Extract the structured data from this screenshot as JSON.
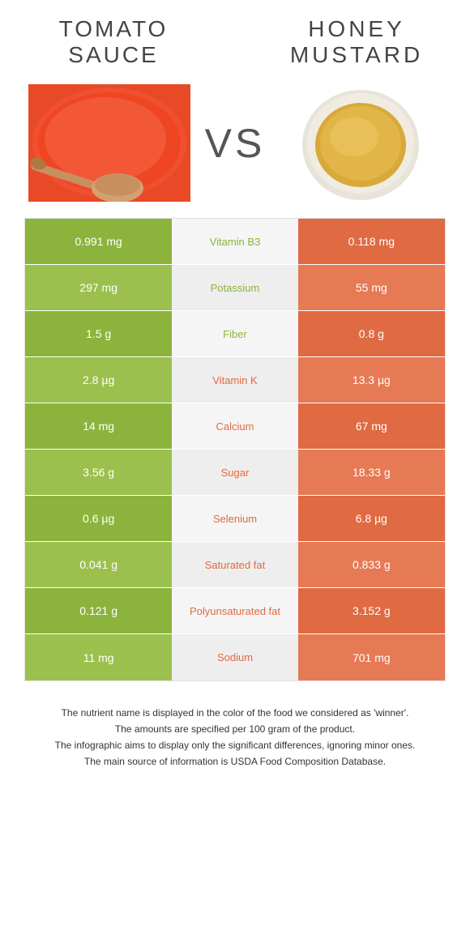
{
  "colors": {
    "green": "#8cb43c",
    "orange": "#e06a42",
    "row_alt_green": "#9bc04d",
    "row_alt_orange": "#e57a55",
    "mid_bg": "#f5f5f5",
    "mid_alt_bg": "#eeeeee"
  },
  "left": {
    "title_line1": "TOMATO",
    "title_line2": "SAUCE"
  },
  "right": {
    "title_line1": "HONEY",
    "title_line2": "MUSTARD"
  },
  "vs": "VS",
  "rows": [
    {
      "left": "0.991 mg",
      "label": "Vitamin B3",
      "right": "0.118 mg",
      "winner": "left"
    },
    {
      "left": "297 mg",
      "label": "Potassium",
      "right": "55 mg",
      "winner": "left"
    },
    {
      "left": "1.5 g",
      "label": "Fiber",
      "right": "0.8 g",
      "winner": "left"
    },
    {
      "left": "2.8 µg",
      "label": "Vitamin K",
      "right": "13.3 µg",
      "winner": "right"
    },
    {
      "left": "14 mg",
      "label": "Calcium",
      "right": "67 mg",
      "winner": "right"
    },
    {
      "left": "3.56 g",
      "label": "Sugar",
      "right": "18.33 g",
      "winner": "right"
    },
    {
      "left": "0.6 µg",
      "label": "Selenium",
      "right": "6.8 µg",
      "winner": "right"
    },
    {
      "left": "0.041 g",
      "label": "Saturated fat",
      "right": "0.833 g",
      "winner": "right"
    },
    {
      "left": "0.121 g",
      "label": "Polyunsaturated fat",
      "right": "3.152 g",
      "winner": "right"
    },
    {
      "left": "11 mg",
      "label": "Sodium",
      "right": "701 mg",
      "winner": "right"
    }
  ],
  "footnotes": [
    "The nutrient name is displayed in the color of the food we considered as 'winner'.",
    "The amounts are specified per 100 gram of the product.",
    "The infographic aims to display only the significant differences, ignoring minor ones.",
    "The main source of information is USDA Food Composition Database."
  ]
}
